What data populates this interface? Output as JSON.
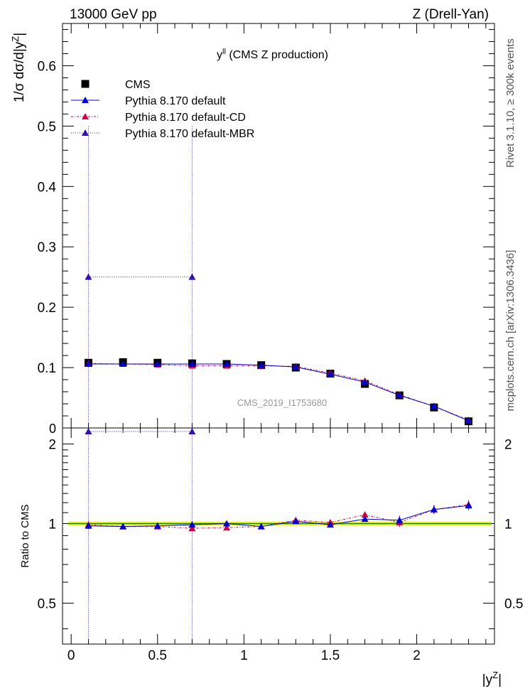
{
  "header": {
    "left": "13000 GeV pp",
    "right": "Z (Drell-Yan)"
  },
  "side_labels": {
    "rivet": "Rivet 3.1.10, ≥ 300k events",
    "mcplots": "mcplots.cern.ch [arXiv:1306.3436]"
  },
  "chart_data": {
    "type": "scatter",
    "title_main": "y",
    "title_sup": "ll",
    "title_rest": " (CMS Z production)",
    "watermark": "CMS_2019_I1753680",
    "xlabel_main": "|y",
    "xlabel_sup": "Z",
    "xlabel_end": "|",
    "ylabel_main": "1/σ dσ/d|y",
    "ylabel_sup": "Z",
    "ylabel_end": "|",
    "ratio_ylabel": "Ratio to CMS",
    "xlim": [
      -0.05,
      2.45
    ],
    "ylim": [
      0,
      0.67
    ],
    "ratio_ylim": [
      0.35,
      2.3
    ],
    "x_ticks": [
      0,
      0.5,
      1,
      1.5,
      2
    ],
    "x_tick_labels": [
      "0",
      "0.5",
      "1",
      "1.5",
      "2"
    ],
    "y_ticks": [
      0.1,
      0.2,
      0.3,
      0.4,
      0.5,
      0.6
    ],
    "y_tick_labels": [
      "0.1",
      "0.2",
      "0.3",
      "0.4",
      "0.5",
      "0.6"
    ],
    "y_zero_label": "0",
    "ratio_ticks": [
      0.5,
      1,
      2
    ],
    "ratio_tick_labels": [
      "0.5",
      "1",
      "2"
    ],
    "legend_position": "top-left",
    "x": [
      0.1,
      0.3,
      0.5,
      0.7,
      0.9,
      1.1,
      1.3,
      1.5,
      1.7,
      1.9,
      2.1,
      2.3
    ],
    "series": [
      {
        "name": "CMS",
        "marker": "square",
        "color": "#000000",
        "values": [
          0.108,
          0.109,
          0.108,
          0.107,
          0.106,
          0.104,
          0.1,
          0.09,
          0.073,
          0.054,
          0.034,
          0.011
        ]
      },
      {
        "name": "Pythia 8.170 default",
        "marker": "triangle",
        "color": "#0000cc",
        "dash": "",
        "values": [
          0.106,
          0.106,
          0.106,
          0.106,
          0.106,
          0.104,
          0.101,
          0.089,
          0.076,
          0.054,
          0.036,
          0.012
        ],
        "ratio": [
          0.98,
          0.975,
          0.98,
          0.99,
          1.0,
          0.975,
          1.02,
          0.99,
          1.04,
          1.03,
          1.13,
          1.17
        ]
      },
      {
        "name": "Pythia 8.170 default-CD",
        "marker": "triangle",
        "color": "#cc0044",
        "dash": "3,2,1,2",
        "values": [
          0.107,
          0.106,
          0.105,
          0.103,
          0.103,
          0.103,
          0.102,
          0.091,
          0.078,
          0.055,
          0.036,
          0.013
        ],
        "ratio": [
          0.99,
          0.975,
          0.975,
          0.96,
          0.965,
          0.975,
          1.03,
          1.01,
          1.08,
          1.01,
          1.13,
          1.18
        ]
      },
      {
        "name": "Pythia 8.170 default-MBR",
        "marker": "triangle",
        "color": "#3311aa",
        "dash": "1,2",
        "points": [
          [
            0.1,
            0.25
          ],
          [
            0.7,
            0.25
          ]
        ],
        "ratio_points": [
          [
            0.1,
            2.23
          ],
          [
            0.7,
            2.23
          ]
        ]
      }
    ]
  }
}
